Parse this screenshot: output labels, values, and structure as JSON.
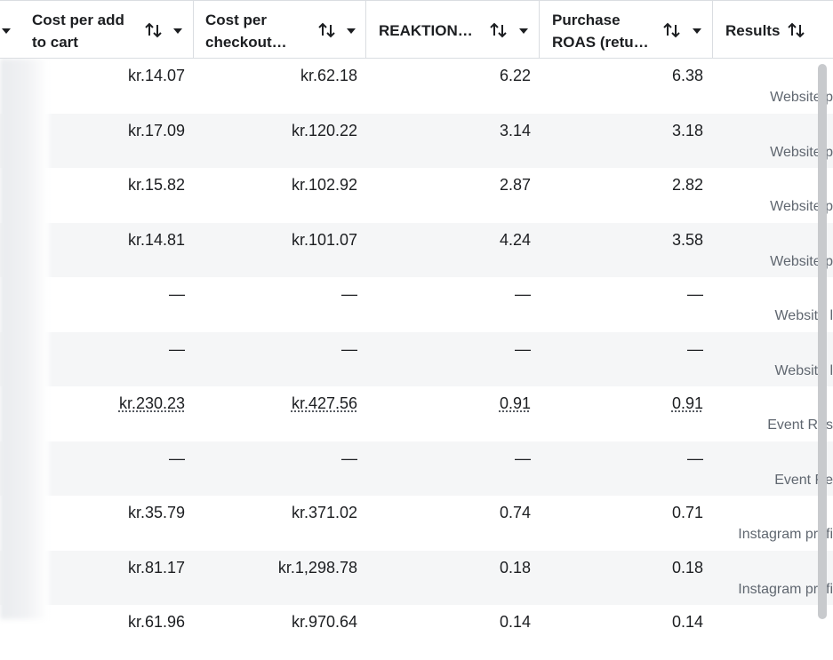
{
  "headers": [
    {
      "line1": "Cost per add",
      "line2": "to cart"
    },
    {
      "line1": "Cost per",
      "line2": "checkout…"
    },
    {
      "line1": "REAKTION…",
      "line2": ""
    },
    {
      "line1": "Purchase",
      "line2": "ROAS (retu…"
    },
    {
      "line1": "Results",
      "line2": ""
    }
  ],
  "rows": [
    {
      "c1": "kr.14.07",
      "c2": "kr.62.18",
      "c3": "6.22",
      "c4": "6.38",
      "result": "Website p",
      "underlined": false
    },
    {
      "c1": "kr.17.09",
      "c2": "kr.120.22",
      "c3": "3.14",
      "c4": "3.18",
      "result": "Website p",
      "underlined": false
    },
    {
      "c1": "kr.15.82",
      "c2": "kr.102.92",
      "c3": "2.87",
      "c4": "2.82",
      "result": "Website p",
      "underlined": false
    },
    {
      "c1": "kr.14.81",
      "c2": "kr.101.07",
      "c3": "4.24",
      "c4": "3.58",
      "result": "Website p",
      "underlined": false
    },
    {
      "c1": "—",
      "c2": "—",
      "c3": "—",
      "c4": "—",
      "result": "Website l",
      "underlined": false
    },
    {
      "c1": "—",
      "c2": "—",
      "c3": "—",
      "c4": "—",
      "result": "Website l",
      "underlined": false
    },
    {
      "c1": "kr.230.23",
      "c2": "kr.427.56",
      "c3": "0.91",
      "c4": "0.91",
      "result": "Event Res",
      "underlined": true
    },
    {
      "c1": "—",
      "c2": "—",
      "c3": "—",
      "c4": "—",
      "result": "Event Re",
      "underlined": false
    },
    {
      "c1": "kr.35.79",
      "c2": "kr.371.02",
      "c3": "0.74",
      "c4": "0.71",
      "result": "Instagram profi",
      "underlined": false
    },
    {
      "c1": "kr.81.17",
      "c2": "kr.1,298.78",
      "c3": "0.18",
      "c4": "0.18",
      "result": "Instagram profi",
      "underlined": false
    },
    {
      "c1": "kr.61.96",
      "c2": "kr.970.64",
      "c3": "0.14",
      "c4": "0.14",
      "result": "",
      "underlined": false
    }
  ],
  "colors": {
    "header_border": "#dadde1",
    "row_alt": "#f5f6f7",
    "text": "#1c1e21",
    "muted": "#606770"
  }
}
